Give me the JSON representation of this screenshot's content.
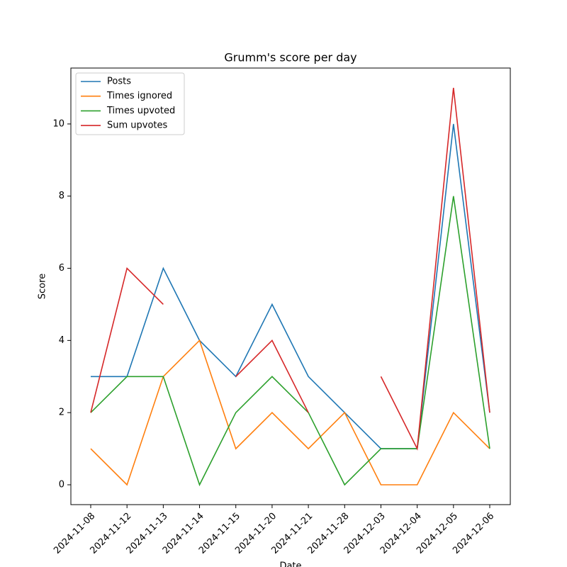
{
  "chart_data": {
    "type": "line",
    "title": "Grumm's score per day",
    "xlabel": "Date",
    "ylabel": "Score",
    "categories": [
      "2024-11-08",
      "2024-11-12",
      "2024-11-13",
      "2024-11-14",
      "2024-11-15",
      "2024-11-20",
      "2024-11-21",
      "2024-11-28",
      "2024-12-03",
      "2024-12-04",
      "2024-12-05",
      "2024-12-06"
    ],
    "series": [
      {
        "name": "Posts",
        "color": "#1f77b4",
        "values": [
          3,
          3,
          6,
          4,
          3,
          5,
          3,
          2,
          1,
          1,
          10,
          2
        ]
      },
      {
        "name": "Times ignored",
        "color": "#ff7f0e",
        "values": [
          1,
          0,
          3,
          4,
          1,
          2,
          1,
          2,
          0,
          0,
          2,
          1
        ]
      },
      {
        "name": "Times upvoted",
        "color": "#2ca02c",
        "values": [
          2,
          3,
          3,
          0,
          2,
          3,
          2,
          0,
          1,
          1,
          8,
          1
        ]
      },
      {
        "name": "Sum upvotes",
        "color": "#d62728",
        "values": [
          2,
          6,
          5,
          null,
          3,
          4,
          2,
          null,
          3,
          1,
          11,
          2
        ]
      }
    ],
    "ylim": [
      -0.55,
      11.55
    ],
    "yticks": [
      0,
      2,
      4,
      6,
      8,
      10
    ],
    "legend": "upper left"
  }
}
